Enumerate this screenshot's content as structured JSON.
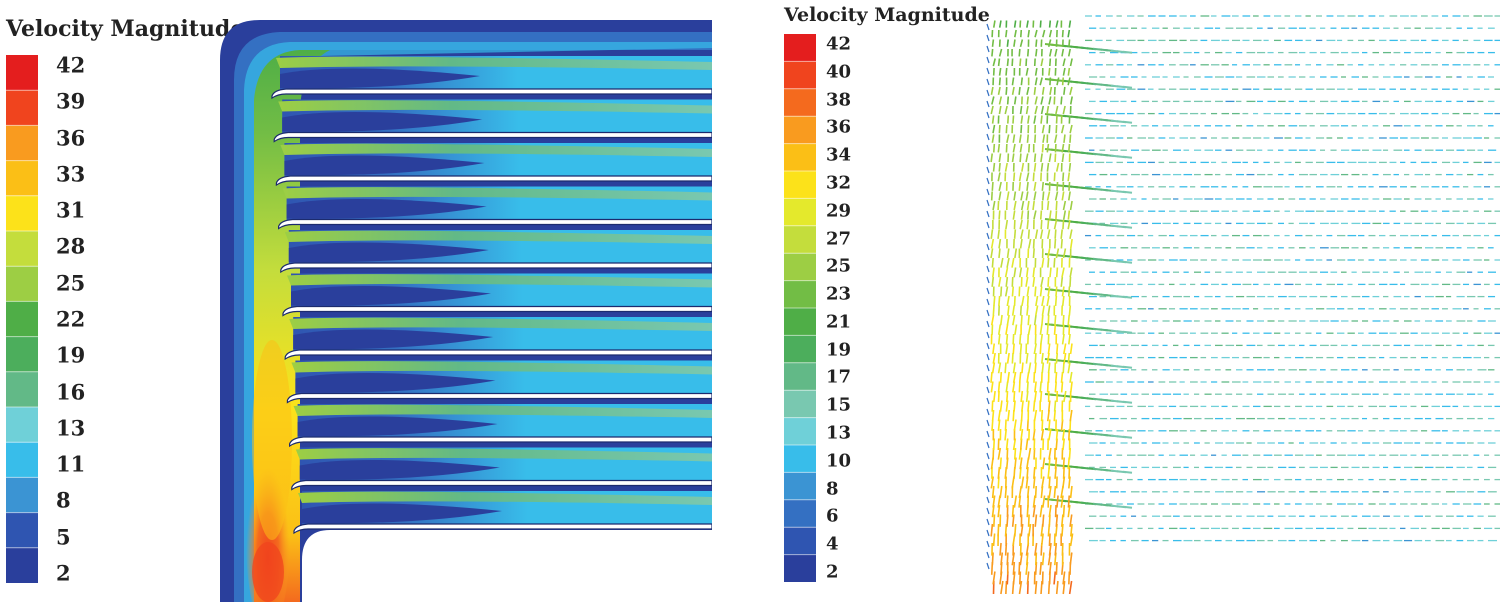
{
  "left_legend": {
    "title": "Velocity Magnitude",
    "labels": [
      "42",
      "39",
      "36",
      "33",
      "31",
      "28",
      "25",
      "22",
      "19",
      "16",
      "13",
      "11",
      "8",
      "5",
      "2"
    ]
  },
  "right_legend": {
    "title": "Velocity Magnitude",
    "labels": [
      "42",
      "40",
      "38",
      "36",
      "34",
      "32",
      "29",
      "27",
      "25",
      "23",
      "21",
      "19",
      "17",
      "15",
      "13",
      "10",
      "8",
      "6",
      "4",
      "2"
    ]
  },
  "colorscale": [
    "#e41e1e",
    "#f0441e",
    "#f46a1e",
    "#f99b1f",
    "#fbbf16",
    "#fce21a",
    "#e4e92c",
    "#c4dd3c",
    "#9dce44",
    "#72bd45",
    "#4fae47",
    "#4cae5c",
    "#62b987",
    "#79c8b0",
    "#6fd0d8",
    "#38bdea",
    "#3b94d3",
    "#3470c2",
    "#2f55b1",
    "#2a3f9c"
  ]
}
